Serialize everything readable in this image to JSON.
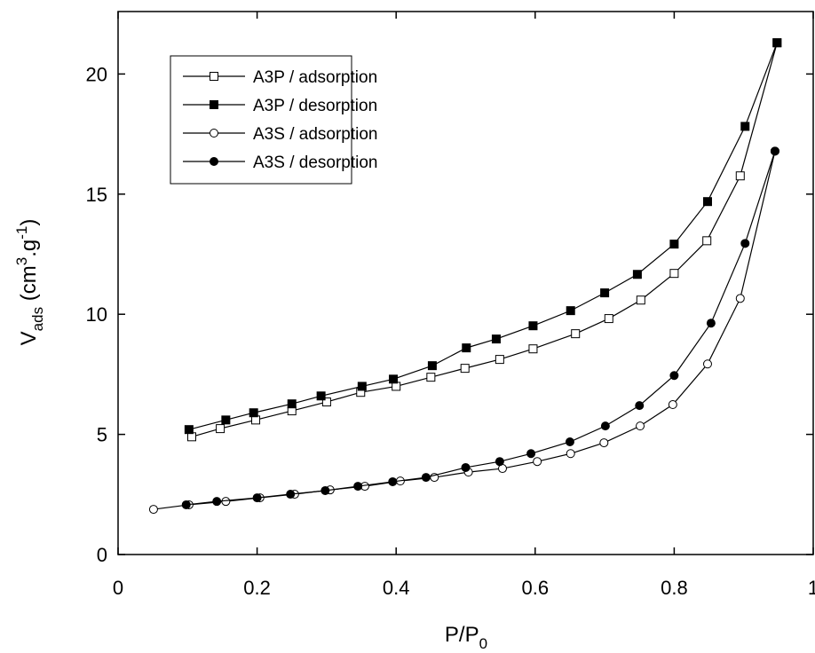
{
  "chart_data": {
    "type": "scatter",
    "xlabel_parts": [
      {
        "text": "P/P"
      },
      {
        "text": "0",
        "shift": "sub"
      }
    ],
    "ylabel_parts": [
      {
        "text": "V"
      },
      {
        "text": "ads",
        "shift": "sub"
      },
      {
        "text": " (cm"
      },
      {
        "text": "3",
        "shift": "super"
      },
      {
        "text": ".g"
      },
      {
        "text": "-1",
        "shift": "super"
      },
      {
        "text": ")"
      }
    ],
    "xlim": [
      0,
      1
    ],
    "ylim": [
      0,
      22.6
    ],
    "xticks": [
      0,
      0.2,
      0.4,
      0.6,
      0.8,
      1
    ],
    "yticks": [
      0,
      5,
      10,
      15,
      20
    ],
    "legend_position": "upper left",
    "series": [
      {
        "name": "A3P / adsorption",
        "color": "#000000",
        "marker": "square",
        "filled": false,
        "x": [
          0.106,
          0.147,
          0.198,
          0.25,
          0.3,
          0.349,
          0.4,
          0.45,
          0.499,
          0.549,
          0.597,
          0.658,
          0.706,
          0.752,
          0.8,
          0.847,
          0.895,
          0.948
        ],
        "values": [
          4.9,
          5.24,
          5.6,
          5.98,
          6.35,
          6.75,
          7.0,
          7.38,
          7.75,
          8.12,
          8.56,
          9.19,
          9.82,
          10.59,
          11.7,
          13.06,
          15.76,
          21.3
        ]
      },
      {
        "name": "A3P / desorption",
        "color": "#000000",
        "marker": "square",
        "filled": true,
        "x": [
          0.102,
          0.155,
          0.195,
          0.25,
          0.292,
          0.351,
          0.396,
          0.452,
          0.501,
          0.544,
          0.597,
          0.651,
          0.7,
          0.747,
          0.8,
          0.848,
          0.902,
          0.948
        ],
        "values": [
          5.2,
          5.6,
          5.9,
          6.27,
          6.6,
          7.0,
          7.3,
          7.86,
          8.6,
          8.97,
          9.52,
          10.15,
          10.89,
          11.66,
          12.92,
          14.69,
          17.82,
          21.3
        ]
      },
      {
        "name": "A3S / adsorption",
        "color": "#000000",
        "marker": "circle",
        "filled": false,
        "x": [
          0.051,
          0.102,
          0.155,
          0.204,
          0.254,
          0.305,
          0.355,
          0.406,
          0.455,
          0.504,
          0.553,
          0.603,
          0.651,
          0.699,
          0.751,
          0.798,
          0.848,
          0.895,
          0.945
        ],
        "values": [
          1.88,
          2.07,
          2.21,
          2.36,
          2.51,
          2.69,
          2.84,
          3.06,
          3.21,
          3.43,
          3.58,
          3.87,
          4.2,
          4.65,
          5.35,
          6.24,
          7.93,
          10.66,
          16.79
        ]
      },
      {
        "name": "A3S / desorption",
        "color": "#000000",
        "marker": "circle",
        "filled": true,
        "x": [
          0.098,
          0.142,
          0.2,
          0.248,
          0.298,
          0.345,
          0.395,
          0.443,
          0.5,
          0.549,
          0.594,
          0.65,
          0.701,
          0.75,
          0.8,
          0.853,
          0.902,
          0.945
        ],
        "values": [
          2.07,
          2.21,
          2.36,
          2.51,
          2.66,
          2.84,
          3.03,
          3.21,
          3.62,
          3.87,
          4.2,
          4.69,
          5.35,
          6.2,
          7.45,
          9.63,
          12.95,
          16.79
        ]
      }
    ]
  }
}
